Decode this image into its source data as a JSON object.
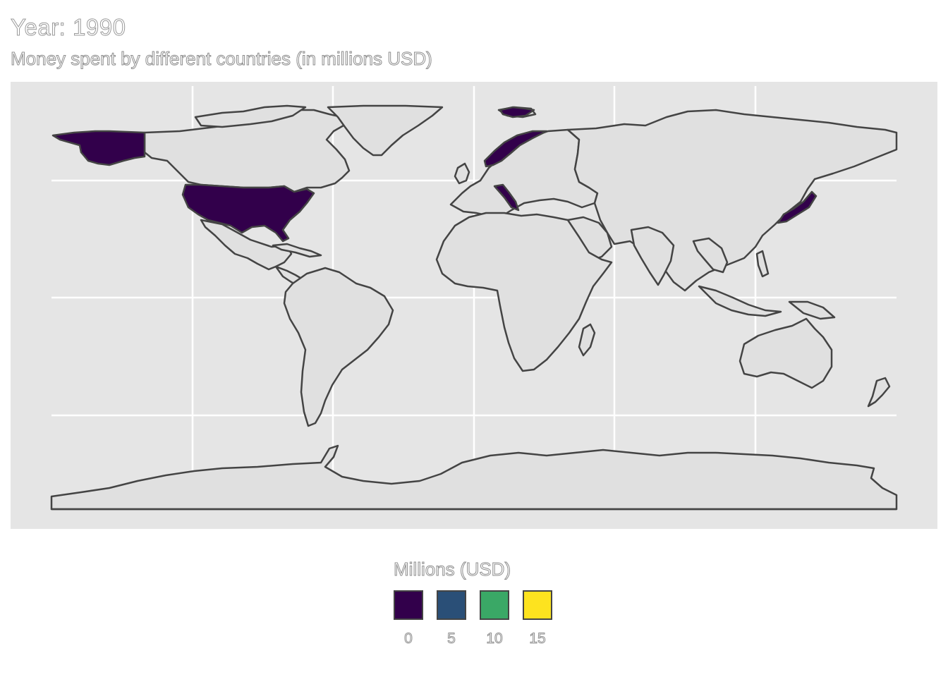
{
  "title": "Year: 1990",
  "subtitle": "Money spent by different countries (in millions USD)",
  "colors": {
    "panel": "#e5e5e5",
    "land": "#e0e0e0",
    "border": "#444444",
    "grid": "#ffffff",
    "highlight": "#32004b"
  },
  "legend": {
    "title": "Millions (USD)",
    "keys": [
      {
        "label": "0",
        "color": "#32004b"
      },
      {
        "label": "5",
        "color": "#2a4f77"
      },
      {
        "label": "10",
        "color": "#3aa866"
      },
      {
        "label": "15",
        "color": "#fde31f"
      }
    ]
  },
  "chart_data": {
    "type": "choropleth",
    "title": "Year: 1990",
    "subtitle": "Money spent by different countries (in millions USD)",
    "legend_title": "Millions (USD)",
    "scale_breaks": [
      0,
      5,
      10,
      15
    ],
    "legend_position": "bottom",
    "grid": true,
    "regions_with_data": [
      {
        "name": "United States",
        "value": 0
      },
      {
        "name": "Norway",
        "value": 0
      },
      {
        "name": "Italy",
        "value": 0
      },
      {
        "name": "Japan",
        "value": 0
      }
    ]
  }
}
